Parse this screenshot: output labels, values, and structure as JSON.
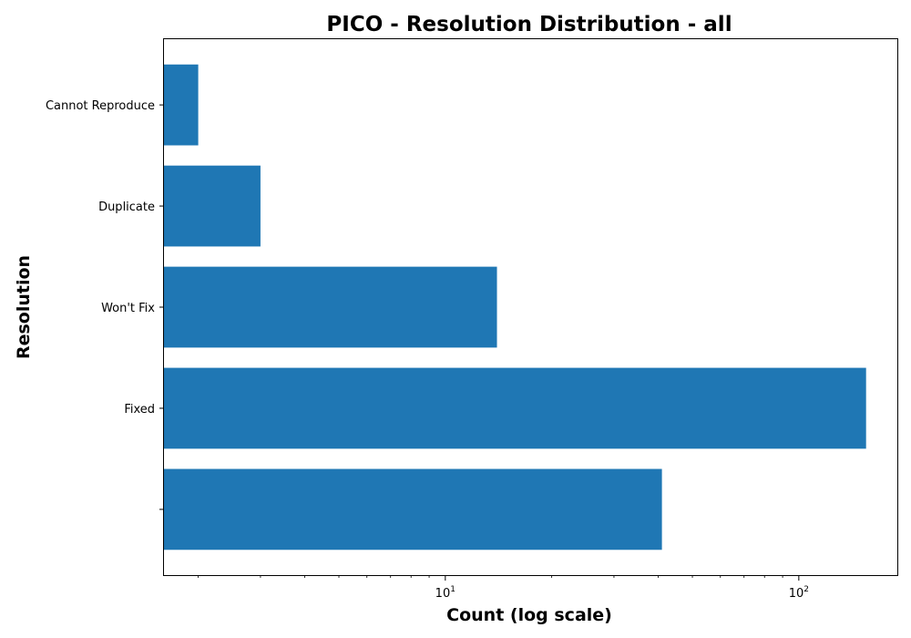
{
  "chart_data": {
    "type": "bar",
    "orientation": "horizontal",
    "title": "PICO - Resolution Distribution - all",
    "xlabel": "Count (log scale)",
    "ylabel": "Resolution",
    "x_scale": "log",
    "xlim": [
      1.6,
      190
    ],
    "x_ticks": [
      {
        "value": 10,
        "base": "10",
        "exp": "1"
      },
      {
        "value": 100,
        "base": "10",
        "exp": "2"
      }
    ],
    "categories": [
      "",
      "Fixed",
      "Won't Fix",
      "Duplicate",
      "Cannot Reproduce"
    ],
    "values": [
      41,
      155,
      14,
      3,
      2
    ],
    "bar_color": "#1f77b4",
    "grid": false,
    "legend": "none"
  }
}
